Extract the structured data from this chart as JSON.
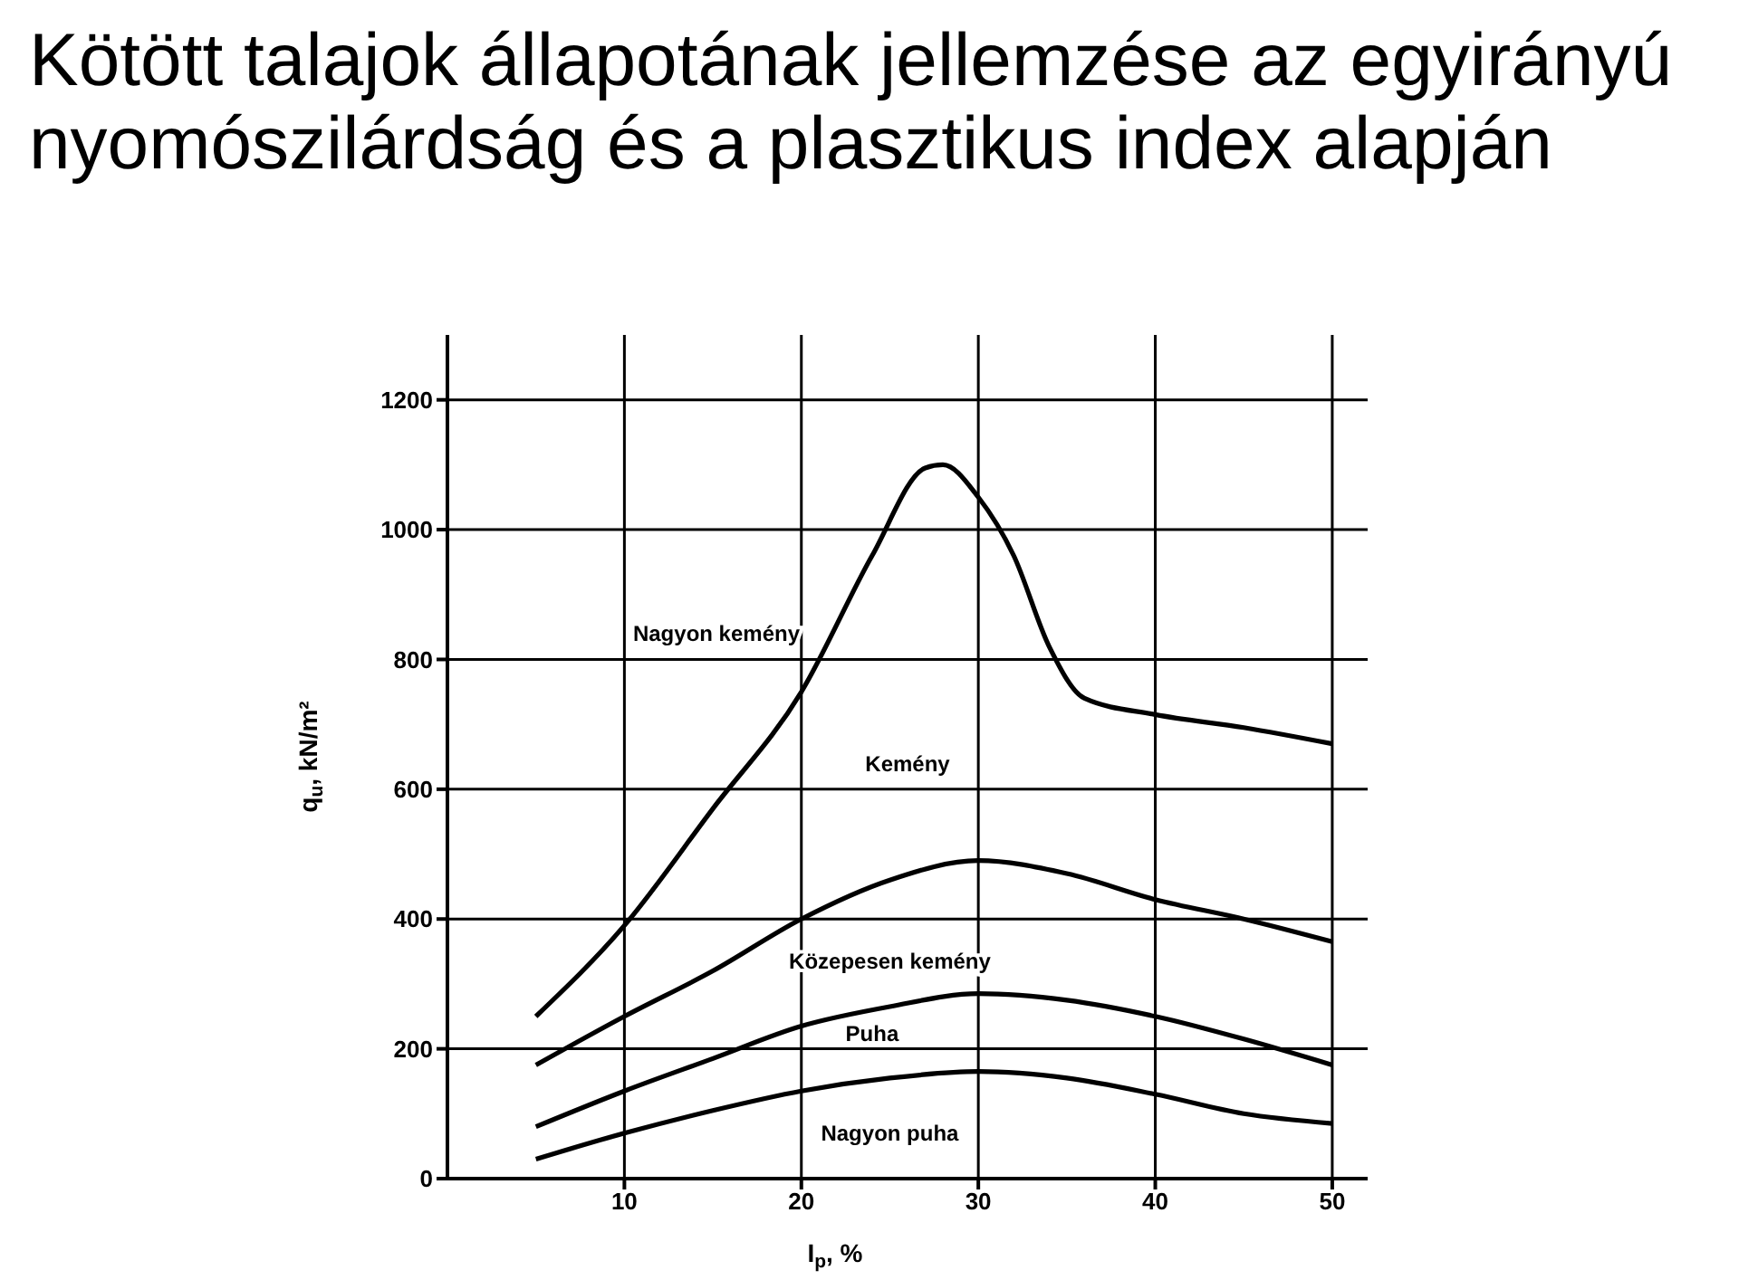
{
  "chart_data": {
    "type": "line",
    "title": "Kötött talajok állapotának jellemzése az egyirányú nyomószilárdság és a plasztikus index alapján",
    "xlabel": "I$_{p}$, %",
    "ylabel": "q$_{u}$, kN/m²",
    "xlim": [
      0,
      52
    ],
    "xticks": [
      10,
      20,
      30,
      40,
      50
    ],
    "ylim": [
      0,
      1300
    ],
    "yticks": [
      0,
      200,
      400,
      600,
      800,
      1000,
      1200
    ],
    "grid": true,
    "series": [
      {
        "color": "#000000",
        "x": [
          5,
          10,
          15,
          20,
          24,
          27,
          28,
          30,
          32,
          34,
          36,
          40,
          45,
          50
        ],
        "values": [
          250,
          390,
          570,
          750,
          960,
          1095,
          1100,
          1050,
          960,
          820,
          740,
          715,
          695,
          670
        ]
      },
      {
        "color": "#000000",
        "x": [
          5,
          10,
          15,
          20,
          25,
          30,
          35,
          40,
          45,
          50
        ],
        "values": [
          175,
          250,
          320,
          400,
          460,
          490,
          470,
          430,
          400,
          365
        ]
      },
      {
        "color": "#000000",
        "x": [
          5,
          10,
          15,
          20,
          25,
          30,
          35,
          40,
          45,
          50
        ],
        "values": [
          80,
          135,
          185,
          235,
          265,
          285,
          275,
          250,
          215,
          175
        ]
      },
      {
        "color": "#000000",
        "x": [
          5,
          10,
          15,
          20,
          25,
          30,
          35,
          40,
          45,
          50
        ],
        "values": [
          30,
          70,
          105,
          135,
          155,
          165,
          155,
          130,
          100,
          85
        ]
      }
    ],
    "annotations": [
      "Nagyon kemény",
      "Kemény",
      "Közepesen kemény",
      "Puha",
      "Nagyon puha"
    ]
  }
}
